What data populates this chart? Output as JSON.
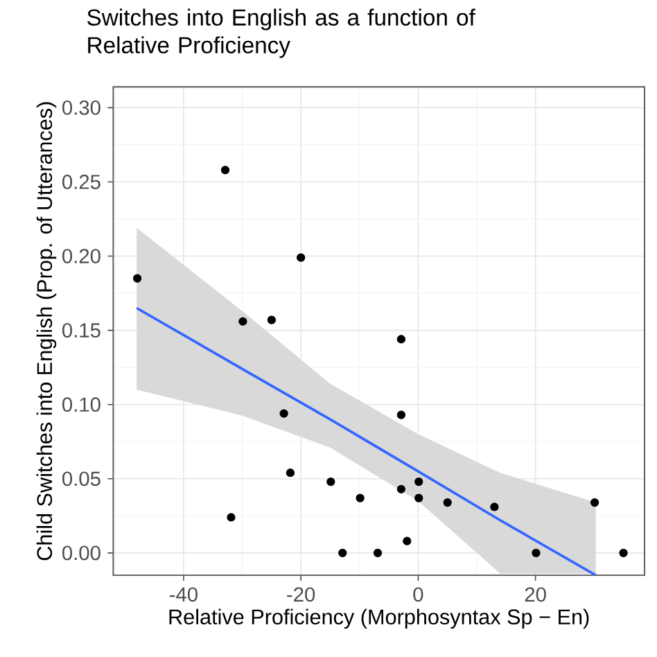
{
  "chart_data": {
    "type": "scatter",
    "title": "Switches into English as a function of Relative Proficiency",
    "xlabel": "Relative Proficiency (Morphosyntax Sp − En)",
    "ylabel": "Child Switches into English (Prop. of Utterances)",
    "xlim": [
      -52,
      38.6
    ],
    "ylim": [
      -0.015,
      0.314
    ],
    "xticks": [
      -40,
      -20,
      0,
      20
    ],
    "yticks": [
      {
        "value": 0,
        "label": "0.00"
      },
      {
        "value": 0.05,
        "label": "0.05"
      },
      {
        "value": 0.1,
        "label": "0.10"
      },
      {
        "value": 0.15,
        "label": "0.15"
      },
      {
        "value": 0.2,
        "label": "0.20"
      },
      {
        "value": 0.25,
        "label": "0.25"
      },
      {
        "value": 0.3,
        "label": "0.30"
      }
    ],
    "grid": true,
    "series": [
      {
        "color": "#000000",
        "marker": "circle",
        "x": [
          -47.9,
          -32.9,
          -31.9,
          -29.9,
          -25.0,
          -22.9,
          -21.8,
          -20.0,
          -14.9,
          -12.9,
          -9.9,
          -6.9,
          -2.9,
          -2.9,
          -2.9,
          -1.9,
          0.1,
          0.1,
          5.0,
          13.0,
          20.1,
          30.1,
          35.0
        ],
        "values": [
          0.185,
          0.258,
          0.024,
          0.156,
          0.157,
          0.094,
          0.054,
          0.199,
          0.048,
          0.0,
          0.037,
          0.0,
          0.144,
          0.093,
          0.043,
          0.008,
          0.048,
          0.037,
          0.034,
          0.031,
          0.0,
          0.034,
          0.0
        ]
      },
      {
        "type": "line",
        "color": "#3366ff",
        "x": [
          -48,
          -30,
          -15,
          0,
          14,
          30.3
        ],
        "values": [
          0.165,
          0.124,
          0.09,
          0.055,
          0.022,
          -0.015
        ],
        "lower": [
          0.11,
          0.0925,
          0.071,
          0.035,
          -0.014,
          -0.014
        ],
        "upper": [
          0.219,
          0.163,
          0.114,
          0.08,
          0.054,
          0.034
        ]
      }
    ]
  }
}
